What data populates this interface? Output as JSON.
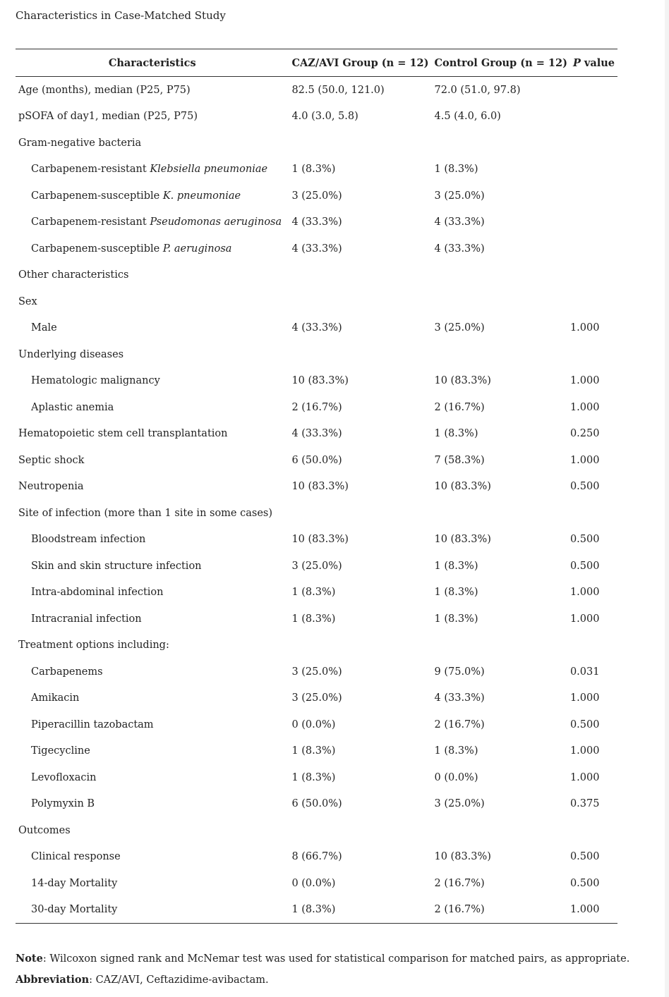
{
  "caption": "Characteristics in Case-Matched Study",
  "headers": {
    "characteristics": "Characteristics",
    "caz_avi": "CAZ/AVI Group (n = 12)",
    "control": "Control Group (n = 12)",
    "p_italic": "P",
    "p_rest": " value"
  },
  "rows": [
    {
      "label": "Age (months), median (P25, P75)",
      "indent": false,
      "caz": "82.5 (50.0, 121.0)",
      "ctrl": "72.0 (51.0, 97.8)",
      "p": ""
    },
    {
      "label": "pSOFA of day1, median (P25, P75)",
      "indent": false,
      "caz": "4.0 (3.0, 5.8)",
      "ctrl": "4.5 (4.0, 6.0)",
      "p": ""
    },
    {
      "label": "Gram-negative bacteria",
      "indent": false,
      "caz": "",
      "ctrl": "",
      "p": ""
    },
    {
      "label": "Carbapenem-resistant ",
      "italic": "Klebsiella pneumoniae",
      "indent": true,
      "caz": "1 (8.3%)",
      "ctrl": "1 (8.3%)",
      "p": ""
    },
    {
      "label": "Carbapenem-susceptible ",
      "italic": "K. pneumoniae",
      "indent": true,
      "caz": "3 (25.0%)",
      "ctrl": "3 (25.0%)",
      "p": ""
    },
    {
      "label": "Carbapenem-resistant ",
      "italic": "Pseudomonas aeruginosa",
      "indent": true,
      "caz": "4 (33.3%)",
      "ctrl": "4 (33.3%)",
      "p": ""
    },
    {
      "label": "Carbapenem-susceptible ",
      "italic": "P. aeruginosa",
      "indent": true,
      "caz": "4 (33.3%)",
      "ctrl": "4 (33.3%)",
      "p": ""
    },
    {
      "label": "Other characteristics",
      "indent": false,
      "caz": "",
      "ctrl": "",
      "p": ""
    },
    {
      "label": "Sex",
      "indent": false,
      "caz": "",
      "ctrl": "",
      "p": ""
    },
    {
      "label": "Male",
      "indent": true,
      "caz": "4 (33.3%)",
      "ctrl": "3 (25.0%)",
      "p": "1.000"
    },
    {
      "label": "Underlying diseases",
      "indent": false,
      "caz": "",
      "ctrl": "",
      "p": ""
    },
    {
      "label": "Hematologic malignancy",
      "indent": true,
      "caz": "10 (83.3%)",
      "ctrl": "10 (83.3%)",
      "p": "1.000"
    },
    {
      "label": "Aplastic anemia",
      "indent": true,
      "caz": "2 (16.7%)",
      "ctrl": "2 (16.7%)",
      "p": "1.000"
    },
    {
      "label": "Hematopoietic stem cell transplantation",
      "indent": false,
      "caz": "4 (33.3%)",
      "ctrl": "1 (8.3%)",
      "p": "0.250"
    },
    {
      "label": "Septic shock",
      "indent": false,
      "caz": "6 (50.0%)",
      "ctrl": "7 (58.3%)",
      "p": "1.000"
    },
    {
      "label": "Neutropenia",
      "indent": false,
      "caz": "10 (83.3%)",
      "ctrl": "10 (83.3%)",
      "p": "0.500"
    },
    {
      "label": "Site of infection (more than 1 site in some cases)",
      "indent": false,
      "caz": "",
      "ctrl": "",
      "p": ""
    },
    {
      "label": "Bloodstream infection",
      "indent": true,
      "caz": "10 (83.3%)",
      "ctrl": "10 (83.3%)",
      "p": "0.500"
    },
    {
      "label": "Skin and skin structure infection",
      "indent": true,
      "caz": "3 (25.0%)",
      "ctrl": "1 (8.3%)",
      "p": "0.500"
    },
    {
      "label": "Intra-abdominal infection",
      "indent": true,
      "caz": "1 (8.3%)",
      "ctrl": "1 (8.3%)",
      "p": "1.000"
    },
    {
      "label": "Intracranial infection",
      "indent": true,
      "caz": "1 (8.3%)",
      "ctrl": "1 (8.3%)",
      "p": "1.000"
    },
    {
      "label": "Treatment options including:",
      "indent": false,
      "caz": "",
      "ctrl": "",
      "p": ""
    },
    {
      "label": "Carbapenems",
      "indent": true,
      "caz": "3 (25.0%)",
      "ctrl": "9 (75.0%)",
      "p": "0.031"
    },
    {
      "label": "Amikacin",
      "indent": true,
      "caz": "3 (25.0%)",
      "ctrl": "4 (33.3%)",
      "p": "1.000"
    },
    {
      "label": "Piperacillin tazobactam",
      "indent": true,
      "caz": "0 (0.0%)",
      "ctrl": "2 (16.7%)",
      "p": "0.500"
    },
    {
      "label": "Tigecycline",
      "indent": true,
      "caz": "1 (8.3%)",
      "ctrl": "1 (8.3%)",
      "p": "1.000"
    },
    {
      "label": "Levofloxacin",
      "indent": true,
      "caz": "1 (8.3%)",
      "ctrl": "0 (0.0%)",
      "p": "1.000"
    },
    {
      "label": "Polymyxin B",
      "indent": true,
      "caz": "6 (50.0%)",
      "ctrl": "3 (25.0%)",
      "p": "0.375"
    },
    {
      "label": "Outcomes",
      "indent": false,
      "caz": "",
      "ctrl": "",
      "p": ""
    },
    {
      "label": "Clinical response",
      "indent": true,
      "caz": "8 (66.7%)",
      "ctrl": "10 (83.3%)",
      "p": "0.500"
    },
    {
      "label": "14-day Mortality",
      "indent": true,
      "caz": "0 (0.0%)",
      "ctrl": "2 (16.7%)",
      "p": "0.500"
    },
    {
      "label": "30-day Mortality",
      "indent": true,
      "caz": "1 (8.3%)",
      "ctrl": "2 (16.7%)",
      "p": "1.000"
    }
  ],
  "notes": {
    "note_label": "Note",
    "note_text": ": Wilcoxon signed rank and McNemar test was used for statistical comparison for matched pairs, as appropriate.",
    "abbr_label": "Abbreviation",
    "abbr_text": ": CAZ/AVI, Ceftazidime-avibactam."
  }
}
